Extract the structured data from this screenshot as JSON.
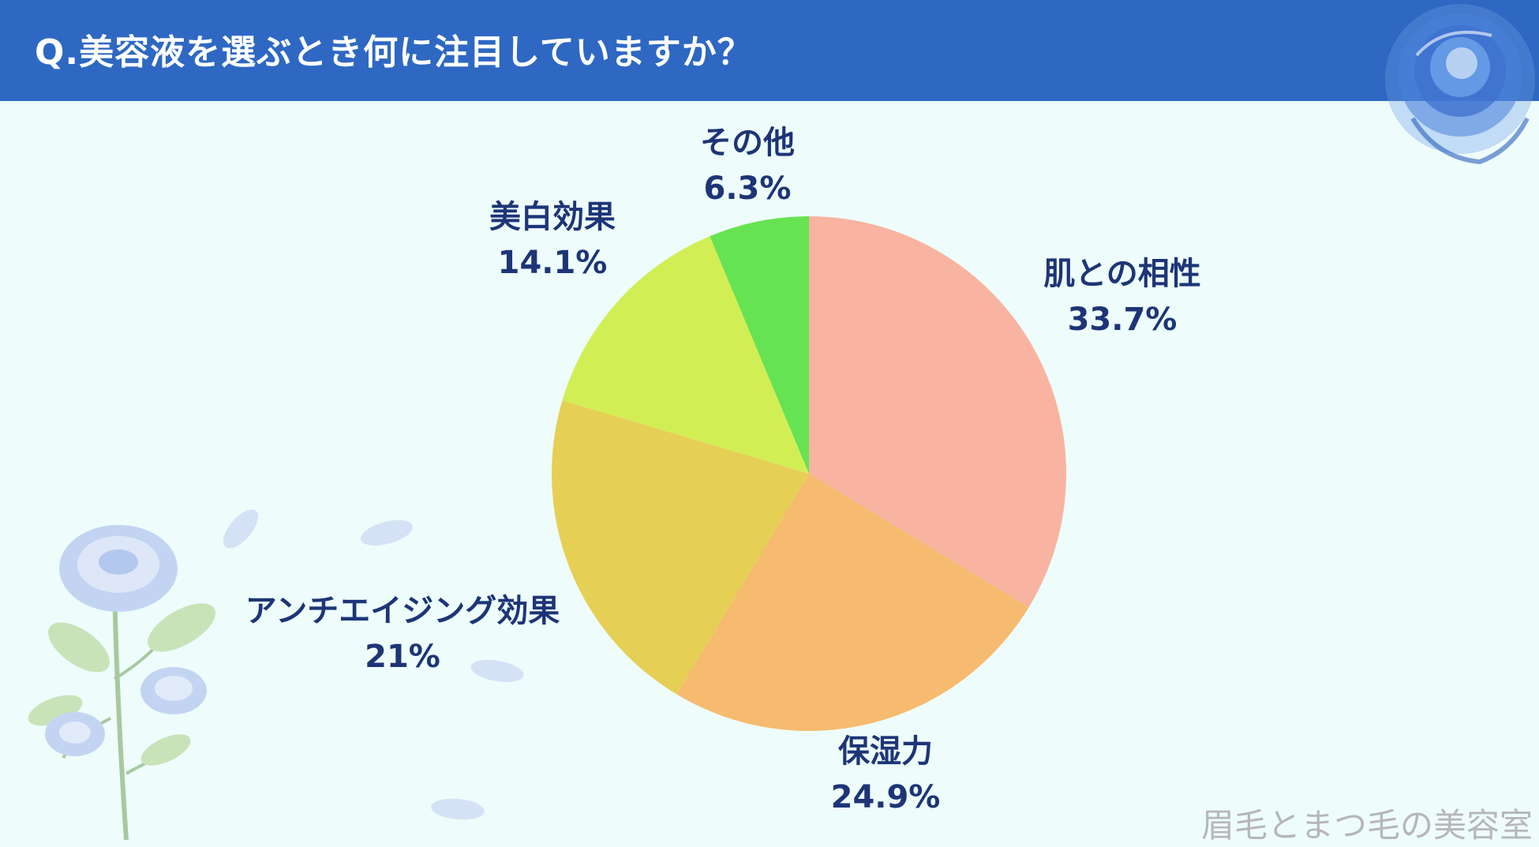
{
  "header": {
    "title": "Q.美容液を選ぶとき何に注目していますか？"
  },
  "chart_data": {
    "type": "pie",
    "title": "Q.美容液を選ぶとき何に注目していますか？",
    "slices": [
      {
        "label": "肌との相性",
        "value": 33.7,
        "value_label": "33.7%",
        "color": "#f8b4a0"
      },
      {
        "label": "保湿力",
        "value": 24.9,
        "value_label": "24.9%",
        "color": "#f6bb6e"
      },
      {
        "label": "アンチエイジング効果",
        "value": 21,
        "value_label": "21%",
        "color": "#e6cf55"
      },
      {
        "label": "美白効果",
        "value": 14.1,
        "value_label": "14.1%",
        "color": "#d2ee55"
      },
      {
        "label": "その他",
        "value": 6.3,
        "value_label": "6.3%",
        "color": "#66e352"
      }
    ],
    "start_angle": "12 o'clock",
    "direction": "clockwise",
    "legend": "none"
  },
  "watermark": {
    "text": "眉毛とまつ毛の美容室"
  },
  "colors": {
    "header": "#2e68c2",
    "background": "#eefdfc",
    "label": "#1d3577"
  }
}
